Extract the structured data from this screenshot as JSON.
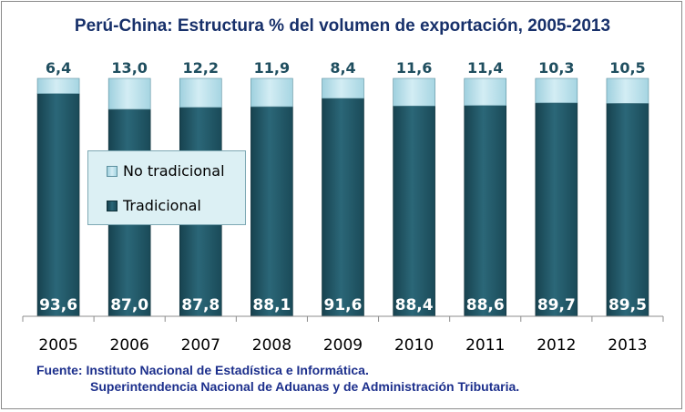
{
  "chart_data": {
    "type": "bar",
    "stacked": true,
    "title": "Perú-China: Estructura % del volumen de exportación, 2005-2013",
    "categories": [
      "2005",
      "2006",
      "2007",
      "2008",
      "2009",
      "2010",
      "2011",
      "2012",
      "2013"
    ],
    "series": [
      {
        "name": "Tradicional",
        "values": [
          93.6,
          87.0,
          87.8,
          88.1,
          91.6,
          88.4,
          88.6,
          89.7,
          89.5
        ],
        "labels": [
          "93,6",
          "87,0",
          "87,8",
          "88,1",
          "91,6",
          "88,4",
          "88,6",
          "89,7",
          "89,5"
        ],
        "color": "#215968"
      },
      {
        "name": "No tradicional",
        "values": [
          6.4,
          13.0,
          12.2,
          11.9,
          8.4,
          11.6,
          11.4,
          10.3,
          10.5
        ],
        "labels": [
          "6,4",
          "13,0",
          "12,2",
          "11,9",
          "8,4",
          "11,6",
          "11,4",
          "10,3",
          "10,5"
        ],
        "color": "#b6dde8"
      }
    ],
    "ylim": [
      0,
      100
    ],
    "xlabel": "",
    "ylabel": "",
    "legend_position": "left-middle"
  },
  "legend": {
    "items": [
      {
        "label": "No tradicional",
        "color": "#b6dde8"
      },
      {
        "label": "Tradicional",
        "color": "#215968"
      }
    ]
  },
  "source": {
    "line1": "Fuente: Instituto Nacional de Estadística e Informática.",
    "line2": "Superintendencia Nacional de Aduanas y de Administración Tributaria."
  }
}
